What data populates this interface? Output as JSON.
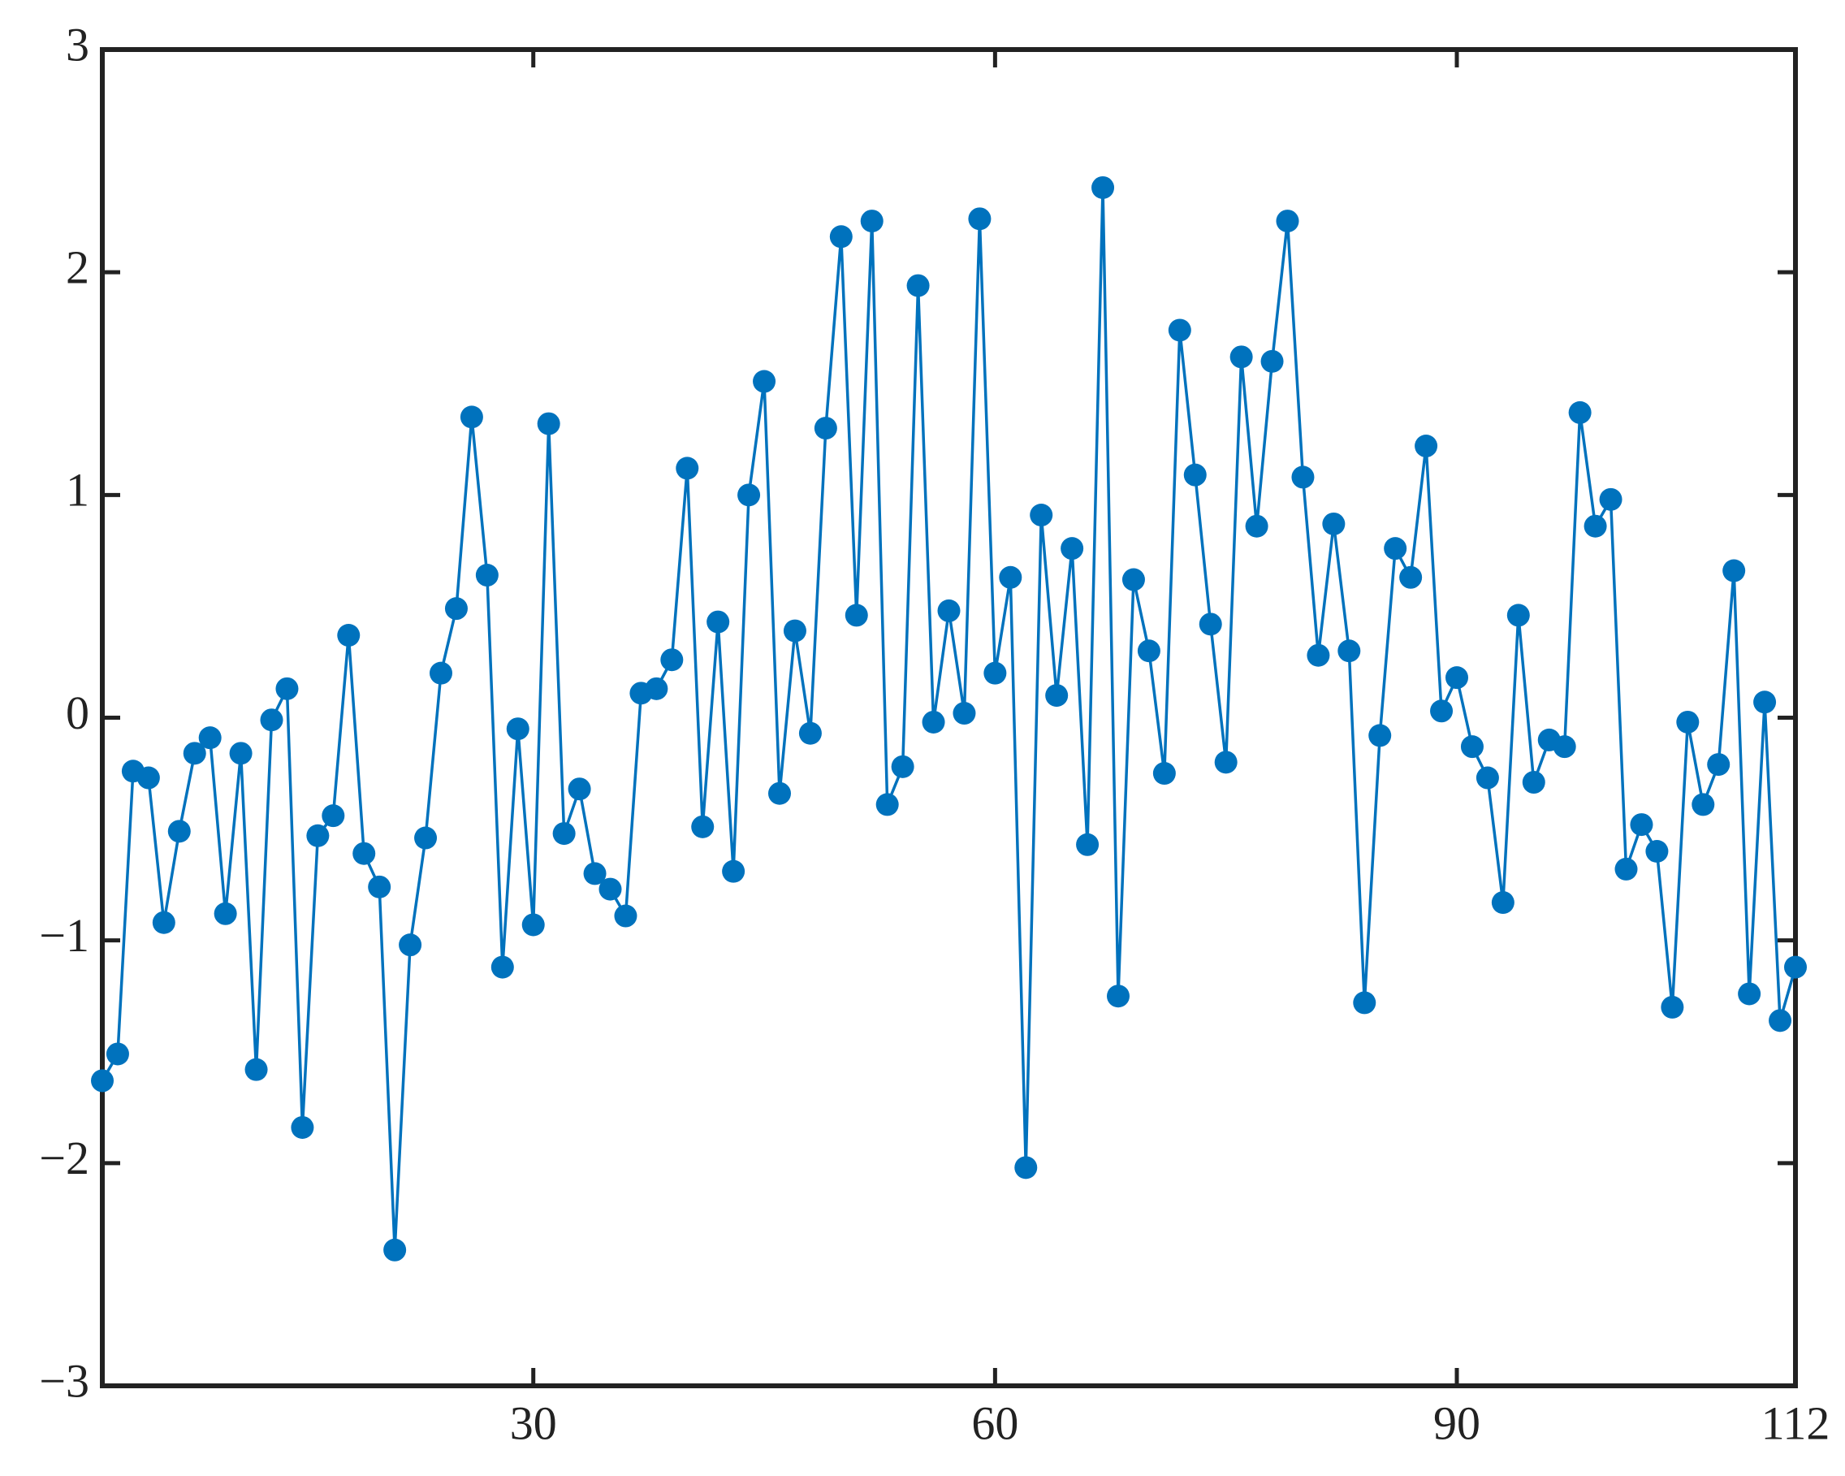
{
  "chart_data": {
    "type": "line",
    "x": [
      2,
      3,
      4,
      5,
      6,
      7,
      8,
      9,
      10,
      11,
      12,
      13,
      14,
      15,
      16,
      17,
      18,
      19,
      20,
      21,
      22,
      23,
      24,
      25,
      26,
      27,
      28,
      29,
      30,
      31,
      32,
      33,
      34,
      35,
      36,
      37,
      38,
      39,
      40,
      41,
      42,
      43,
      44,
      45,
      46,
      47,
      48,
      49,
      50,
      51,
      52,
      53,
      54,
      55,
      56,
      57,
      58,
      59,
      60,
      61,
      62,
      63,
      64,
      65,
      66,
      67,
      68,
      69,
      70,
      71,
      72,
      73,
      74,
      75,
      76,
      77,
      78,
      79,
      80,
      81,
      82,
      83,
      84,
      85,
      86,
      87,
      88,
      89,
      90,
      91,
      92,
      93,
      94,
      95,
      96,
      97,
      98,
      99,
      100,
      101,
      102,
      103,
      104,
      105,
      106,
      107,
      108,
      109,
      110,
      111,
      112
    ],
    "series": [
      {
        "color": "#0072bd",
        "values": [
          -1.63,
          -1.51,
          -0.24,
          -0.27,
          -0.92,
          -0.51,
          -0.16,
          -0.09,
          -0.88,
          -0.16,
          -1.58,
          -0.01,
          0.13,
          -1.84,
          -0.53,
          -0.44,
          0.37,
          -0.61,
          -0.76,
          -2.39,
          -1.02,
          -0.54,
          0.2,
          0.49,
          1.35,
          0.64,
          -1.12,
          -0.05,
          -0.93,
          1.32,
          -0.52,
          -0.32,
          -0.7,
          -0.77,
          -0.89,
          0.11,
          0.13,
          0.26,
          1.12,
          -0.49,
          0.43,
          -0.69,
          1.0,
          1.51,
          -0.34,
          0.39,
          -0.07,
          1.3,
          2.16,
          0.46,
          2.23,
          -0.39,
          -0.22,
          1.94,
          -0.02,
          0.48,
          0.02,
          2.24,
          0.2,
          0.63,
          -2.02,
          0.91,
          0.1,
          0.76,
          -0.57,
          2.38,
          -1.25,
          0.62,
          0.3,
          -0.25,
          1.74,
          1.09,
          0.42,
          -0.2,
          1.62,
          0.86,
          1.6,
          2.23,
          1.08,
          0.28,
          0.87,
          0.3,
          -1.28,
          -0.08,
          0.76,
          0.63,
          1.22,
          0.03,
          0.18,
          -0.13,
          -0.27,
          -0.83,
          0.46,
          -0.29,
          -0.1,
          -0.13,
          1.37,
          0.86,
          0.98,
          -0.68,
          -0.48,
          -0.6,
          -1.3,
          -0.02,
          -0.39,
          -0.21,
          0.66,
          -1.24,
          0.07,
          -1.36,
          -1.12
        ]
      }
    ],
    "xlim": [
      2,
      112
    ],
    "xticks": [
      30,
      60,
      90,
      112
    ],
    "ylim": [
      -3,
      3
    ],
    "yticks": [
      {
        "value": -3,
        "label": "−3"
      },
      {
        "value": -2,
        "label": "−2"
      },
      {
        "value": -1,
        "label": "−1"
      },
      0,
      1,
      2,
      3
    ]
  }
}
